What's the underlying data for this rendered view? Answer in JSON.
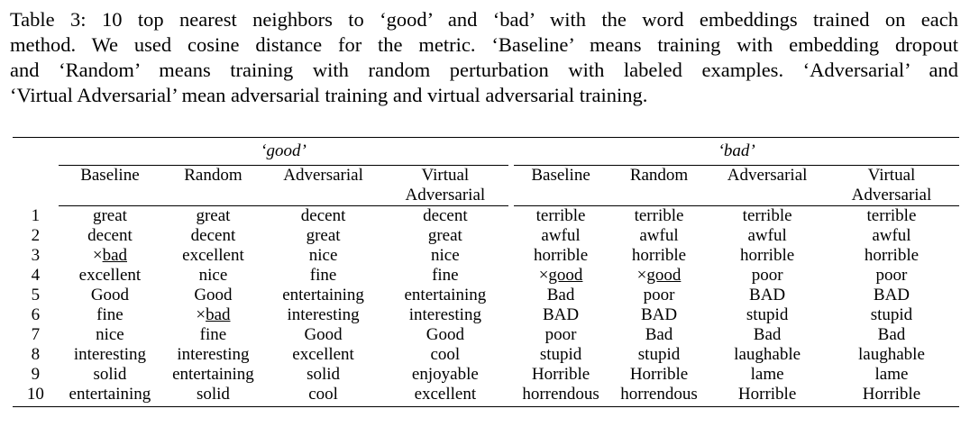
{
  "caption": {
    "lines": [
      "Table 3:  10 top nearest neighbors to ‘good’ and ‘bad’ with the word embeddings trained on each",
      "method. We used cosine distance for the metric. ‘Baseline’ means training with embedding dropout",
      "and ‘Random’ means training with random perturbation with labeled examples.  ‘Adversarial’ and",
      "‘Virtual Adversarial’ mean adversarial training and virtual adversarial training."
    ]
  },
  "table": {
    "groups": [
      "‘good’",
      "‘bad’"
    ],
    "headers": [
      [
        "Baseline"
      ],
      [
        "Random"
      ],
      [
        "Adversarial"
      ],
      [
        "Virtual",
        "Adversarial"
      ],
      [
        "Baseline"
      ],
      [
        "Random"
      ],
      [
        "Adversarial"
      ],
      [
        "Virtual",
        "Adversarial"
      ]
    ],
    "rows": [
      {
        "idx": "1",
        "cells": [
          "great",
          "great",
          "decent",
          "decent",
          "terrible",
          "terrible",
          "terrible",
          "terrible"
        ]
      },
      {
        "idx": "2",
        "cells": [
          "decent",
          "decent",
          "great",
          "great",
          "awful",
          "awful",
          "awful",
          "awful"
        ]
      },
      {
        "idx": "3",
        "cells": [
          "×bad",
          "excellent",
          "nice",
          "nice",
          "horrible",
          "horrible",
          "horrible",
          "horrible"
        ]
      },
      {
        "idx": "4",
        "cells": [
          "excellent",
          "nice",
          "fine",
          "fine",
          "×good",
          "×good",
          "poor",
          "poor"
        ]
      },
      {
        "idx": "5",
        "cells": [
          "Good",
          "Good",
          "entertaining",
          "entertaining",
          "Bad",
          "poor",
          "BAD",
          "BAD"
        ]
      },
      {
        "idx": "6",
        "cells": [
          "fine",
          "×bad",
          "interesting",
          "interesting",
          "BAD",
          "BAD",
          "stupid",
          "stupid"
        ]
      },
      {
        "idx": "7",
        "cells": [
          "nice",
          "fine",
          "Good",
          "Good",
          "poor",
          "Bad",
          "Bad",
          "Bad"
        ]
      },
      {
        "idx": "8",
        "cells": [
          "interesting",
          "interesting",
          "excellent",
          "cool",
          "stupid",
          "stupid",
          "laughable",
          "laughable"
        ]
      },
      {
        "idx": "9",
        "cells": [
          "solid",
          "entertaining",
          "solid",
          "enjoyable",
          "Horrible",
          "Horrible",
          "lame",
          "lame"
        ]
      },
      {
        "idx": "10",
        "cells": [
          "entertaining",
          "solid",
          "cool",
          "excellent",
          "horrendous",
          "horrendous",
          "Horrible",
          "Horrible"
        ]
      }
    ]
  }
}
